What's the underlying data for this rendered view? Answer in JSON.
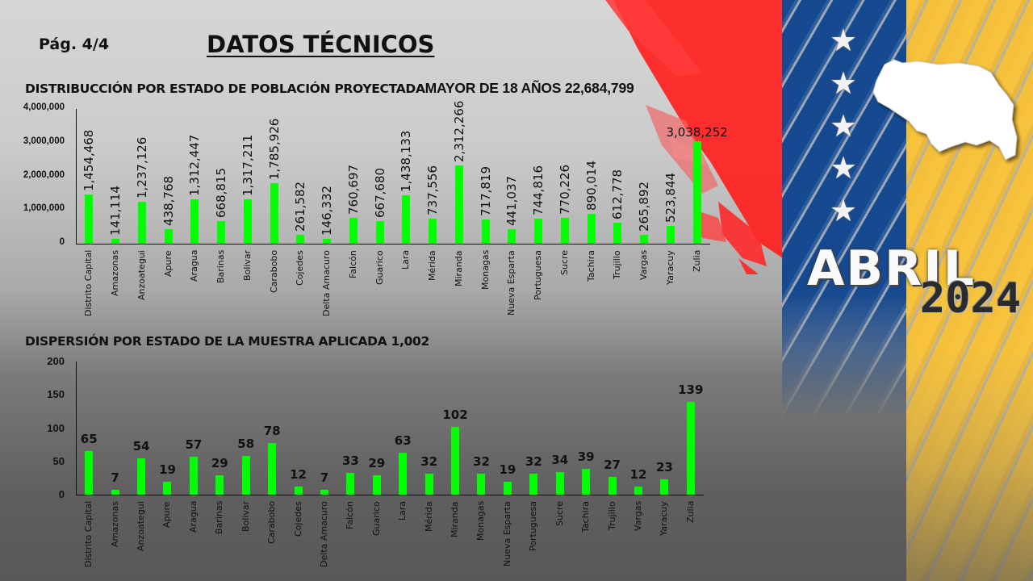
{
  "header": {
    "page_indicator": "Pág.  4/4",
    "title": "DATOS TÉCNICOS"
  },
  "branding": {
    "month": "ABRIL",
    "year": "2024",
    "flag_colors": {
      "red": "#ff1f1f",
      "blue": "#16498f",
      "yellow": "#f7c33c"
    },
    "bar_color": "#00ff00"
  },
  "chart_data": [
    {
      "type": "bar",
      "title": "DISTRIBUCCIÓN POR ESTADO DE POBLACIÓN PROYECTADA MAYOR DE 18 AÑOS 22,684,799",
      "title_part1": "DISTRIBUCCIÓN POR ESTADO DE POBLACIÓN PROYECTADA",
      "title_part2": "MAYOR DE 18 AÑOS 22,684,799",
      "xlabel": "",
      "ylabel": "",
      "ylim": [
        0,
        4000000
      ],
      "yticks": [
        "4,000,000",
        "3,000,000",
        "2,000,000",
        "1,000,000",
        "0"
      ],
      "grid": false,
      "legend": null,
      "categories": [
        "Distrito Capital",
        "Amazonas",
        "Anzoategui",
        "Apure",
        "Aragua",
        "Barinas",
        "Bolivar",
        "Carabobo",
        "Cojedes",
        "Delta Amacuro",
        "Falcón",
        "Guarico",
        "Lara",
        "Mérida",
        "Miranda",
        "Monagas",
        "Nueva Esparta",
        "Portuguesa",
        "Sucre",
        "Tachira",
        "Trujillo",
        "Vargas",
        "Yaracuy",
        "Zulia"
      ],
      "values": [
        1454468,
        141114,
        1237126,
        438768,
        1312447,
        668815,
        1317211,
        1785926,
        261582,
        146332,
        760697,
        667680,
        1438133,
        737556,
        2312266,
        717819,
        441037,
        744816,
        770226,
        890014,
        612778,
        265892,
        523844,
        3038252
      ],
      "value_labels": [
        "1,454,468",
        "141,114",
        "1,237,126",
        "438,768",
        "1,312,447",
        "668,815",
        "1,317,211",
        "1,785,926",
        "261,582",
        "146,332",
        "760,697",
        "667,680",
        "1,438,133",
        "737,556",
        "2,312,266",
        "717,819",
        "441,037",
        "744,816",
        "770,226",
        "890,014",
        "612,778",
        "265,892",
        "523,844",
        "3,038,252"
      ]
    },
    {
      "type": "bar",
      "title": "DISPERSIÓN POR ESTADO DE LA MUESTRA APLICADA 1,002",
      "xlabel": "",
      "ylabel": "",
      "ylim": [
        0,
        200
      ],
      "yticks": [
        "200",
        "150",
        "100",
        "50",
        "0"
      ],
      "grid": false,
      "legend": null,
      "categories": [
        "Distrito Capital",
        "Amazonas",
        "Anzoategui",
        "Apure",
        "Aragua",
        "Barinas",
        "Bolivar",
        "Carabobo",
        "Cojedes",
        "Delta Amacuro",
        "Falcón",
        "Guarico",
        "Lara",
        "Mérida",
        "Miranda",
        "Monagas",
        "Nueva Esparta",
        "Portuguesa",
        "Sucre",
        "Tachira",
        "Trujillo",
        "Vargas",
        "Yaracuy",
        "Zulia"
      ],
      "values": [
        65,
        7,
        54,
        19,
        57,
        29,
        58,
        78,
        12,
        7,
        33,
        29,
        63,
        32,
        102,
        32,
        19,
        32,
        34,
        39,
        27,
        12,
        23,
        139
      ]
    }
  ]
}
